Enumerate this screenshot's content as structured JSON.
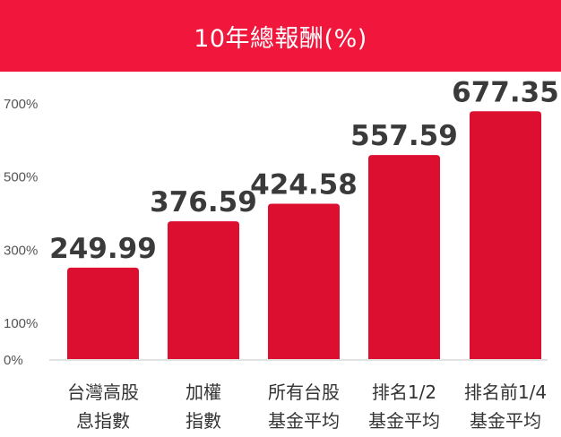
{
  "header": {
    "title": "10年總報酬(%)"
  },
  "chart_data": {
    "type": "bar",
    "title": "10年總報酬(%)",
    "categories": [
      [
        "台灣高股",
        "息指數"
      ],
      [
        "加權",
        "指數"
      ],
      [
        "所有台股",
        "基金平均"
      ],
      [
        "排名1/2",
        "基金平均"
      ],
      [
        "排名前1/4",
        "基金平均"
      ]
    ],
    "values": [
      249.99,
      376.59,
      424.58,
      557.59,
      677.35
    ],
    "value_labels": [
      "249.99",
      "376.59",
      "424.58",
      "557.59",
      "677.35"
    ],
    "yticks": [
      0,
      100,
      300,
      500,
      700
    ],
    "ytick_labels": [
      "0%",
      "100%",
      "300%",
      "500%",
      "700%"
    ],
    "ylim": [
      0,
      700
    ],
    "grid": false,
    "bar_color": "#dc0f30",
    "header_color": "#f0163c"
  }
}
